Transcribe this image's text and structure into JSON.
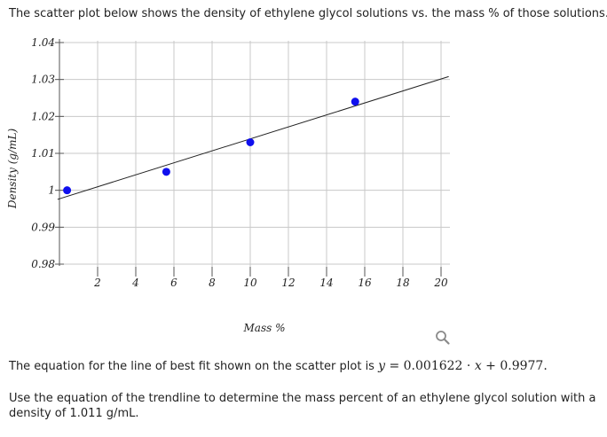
{
  "intro_text": "The scatter plot below shows the density of ethylene glycol solutions vs. the mass % of those solutions.",
  "equation": {
    "prefix": "The equation for the line of best fit shown on the scatter plot is ",
    "math": "y = 0.001622 · x + 0.9977.",
    "math_display": "y = 0.001622 · x + 0.9977."
  },
  "question_text": "Use the equation of the trendline to determine the mass percent of an ethylene glycol solution with a density of 1.011 g/mL.",
  "zoom_icon": "magnifier-icon",
  "chart_data": {
    "type": "scatter",
    "title": "",
    "xlabel": "Mass %",
    "ylabel": "Density (g/mL)",
    "xlim": [
      0,
      20
    ],
    "ylim": [
      0.98,
      1.04
    ],
    "x_ticks": [
      2,
      4,
      6,
      8,
      10,
      12,
      14,
      16,
      18,
      20
    ],
    "y_ticks": [
      0.98,
      0.99,
      1,
      1.01,
      1.02,
      1.03,
      1.04
    ],
    "x_tick_labels": [
      "2",
      "4",
      "6",
      "8",
      "10",
      "12",
      "14",
      "16",
      "18",
      "20"
    ],
    "y_tick_labels": [
      "0.98",
      "0.99",
      "1",
      "1.01",
      "1.02",
      "1.03",
      "1.04"
    ],
    "grid": true,
    "points_color": "#1010ee",
    "series": [
      {
        "x": [
          0.4,
          5.6,
          10.0,
          15.5
        ],
        "y": [
          1.0,
          1.005,
          1.013,
          1.024
        ]
      }
    ],
    "trendline": {
      "slope": 0.001622,
      "intercept": 0.9977,
      "x_range": [
        -0.1,
        20.4
      ]
    }
  }
}
